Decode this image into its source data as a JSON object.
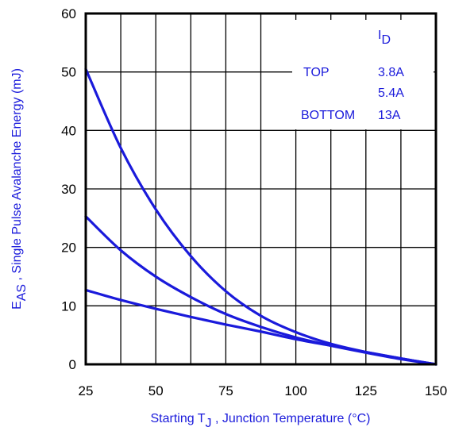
{
  "chart_data": {
    "type": "line",
    "xlabel": {
      "prefix": "Starting T",
      "sub": "J",
      "suffix": " , Junction Temperature (°C)"
    },
    "ylabel": {
      "prefix": "E",
      "sub": "AS",
      "suffix": " , Single Pulse Avalanche Energy (mJ)"
    },
    "xlim": [
      25,
      150
    ],
    "ylim": [
      0,
      60
    ],
    "x_ticks": [
      25,
      50,
      75,
      100,
      125,
      150
    ],
    "y_ticks": [
      0,
      10,
      20,
      30,
      40,
      50,
      60
    ],
    "x_tick_labels": [
      "25",
      "50",
      "75",
      "100",
      "125",
      "150"
    ],
    "y_tick_labels": [
      "0",
      "10",
      "20",
      "30",
      "40",
      "50",
      "60"
    ],
    "grid": true,
    "x": [
      25,
      37.5,
      50,
      62.5,
      75,
      87.5,
      100,
      112.5,
      125,
      137.5,
      150
    ],
    "series": [
      {
        "name": "3.8A",
        "values": [
          50.5,
          37.0,
          26.5,
          18.5,
          12.5,
          8.3,
          5.5,
          3.5,
          2.1,
          1.0,
          0
        ]
      },
      {
        "name": "5.4A",
        "values": [
          25.3,
          19.5,
          15.0,
          11.5,
          8.6,
          6.4,
          4.6,
          3.2,
          2.0,
          0.9,
          0
        ]
      },
      {
        "name": "13A",
        "values": [
          12.7,
          11.0,
          9.5,
          8.1,
          6.8,
          5.6,
          4.3,
          3.2,
          2.1,
          1.0,
          0
        ]
      }
    ],
    "line_color": "#1a1adb",
    "legend": {
      "placement": "top-right",
      "header_prefix": "I",
      "header_sub": "D",
      "rows": [
        {
          "label": "TOP",
          "value": "3.8A"
        },
        {
          "label": "",
          "value": "5.4A"
        },
        {
          "label": "BOTTOM",
          "value": "13A"
        }
      ]
    }
  }
}
